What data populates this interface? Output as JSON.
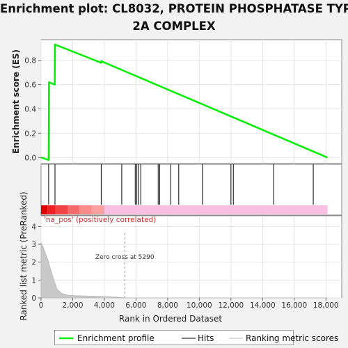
{
  "title_line1": "Enrichment plot: CL8032, PROTEIN PHOSPHATASE TYPE",
  "title_line2": "2A COMPLEX",
  "chart_data": {
    "type": "line",
    "es_panel": {
      "ylabel": "Enrichment score (ES)",
      "ylim": [
        -0.05,
        0.97
      ],
      "yticks": [
        0.0,
        0.2,
        0.4,
        0.6,
        0.8
      ],
      "ytick_labels": [
        "0.0",
        "0.2",
        "0.4",
        "0.6",
        "0.8"
      ],
      "grid": true,
      "series": [
        {
          "name": "Enrichment profile",
          "color": "#00ee00",
          "x": [
            0,
            480,
            500,
            860,
            880,
            3800,
            3820,
            3850,
            18100
          ],
          "y": [
            0.0,
            -0.02,
            0.62,
            0.6,
            0.93,
            0.78,
            0.795,
            0.79,
            0.0
          ]
        }
      ]
    },
    "hits": {
      "name": "Hits",
      "positions": [
        480,
        880,
        3800,
        5100,
        5950,
        6050,
        6150,
        6300,
        7400,
        7500,
        8200,
        8700,
        10200,
        12000,
        12150,
        14700,
        17200
      ]
    },
    "ranking_metric": {
      "name": "Ranking metric scores",
      "ylabel": "Ranked list metric (PreRanked)",
      "ylim": [
        0,
        4.6
      ],
      "yticks": [
        0,
        1,
        2,
        3,
        4
      ],
      "ytick_labels": [
        "0",
        "1",
        "2",
        "3",
        "4"
      ],
      "x": [
        0,
        150,
        400,
        700,
        1000,
        1300,
        1700,
        2200,
        3000,
        3600,
        4400,
        4800,
        5290,
        6000,
        18100
      ],
      "y": [
        3.1,
        2.8,
        2.2,
        1.3,
        0.5,
        0.25,
        0.15,
        0.12,
        0.1,
        0.08,
        0.06,
        0.04,
        0.0,
        0.0,
        0.0
      ],
      "zero_cross_label": "Zero cross at 5290",
      "zero_cross_x": 5290,
      "pos_label": "'na_pos' (positively correlated)"
    },
    "xaxis": {
      "xlabel": "Rank in Ordered Dataset",
      "xlim": [
        0,
        19000
      ],
      "xticks": [
        0,
        2000,
        4000,
        6000,
        8000,
        10000,
        12000,
        14000,
        16000,
        18000
      ],
      "xtick_labels": [
        "0",
        "2,000",
        "4,000",
        "6,000",
        "8,000",
        "10,000",
        "12,000",
        "14,000",
        "16,000",
        "18,000"
      ],
      "n_genes": 18100
    },
    "legend": {
      "position": "bottom",
      "entries": [
        "Enrichment profile",
        "Hits",
        "Ranking metric scores"
      ]
    }
  }
}
